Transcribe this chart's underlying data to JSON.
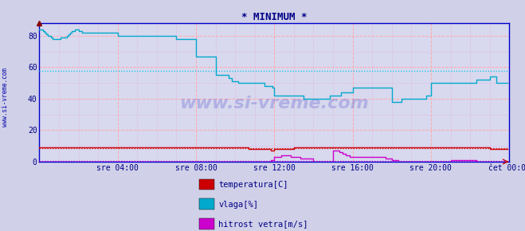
{
  "title": "* MINIMUM *",
  "title_color": "#000088",
  "bg_color": "#d0d0e8",
  "plot_bg_color": "#d8d8ee",
  "plot_border_color": "#0000cc",
  "grid_color_major": "#ffaaaa",
  "grid_color_minor": "#ddaadd",
  "xlim": [
    0,
    288
  ],
  "ylim": [
    0,
    88
  ],
  "yticks": [
    0,
    20,
    40,
    60,
    80
  ],
  "xtick_labels": [
    "sre 04:00",
    "sre 08:00",
    "sre 12:00",
    "sre 16:00",
    "sre 20:00",
    "čet 00:00"
  ],
  "xtick_positions": [
    48,
    96,
    144,
    192,
    240,
    288
  ],
  "watermark": "www.si-vreme.com",
  "watermark_color": "#0000bb",
  "watermark_alpha": 0.18,
  "avg_vlaga_line_color": "#00ccee",
  "avg_vlaga_line_value": 57.5,
  "avg_temp_line_color": "#dd0000",
  "avg_temp_line_value": 8.5,
  "avg_hitrost_line_color": "#cc00cc",
  "avg_hitrost_line_value": 0.5,
  "temp_color": "#cc0000",
  "vlaga_color": "#00aacc",
  "hitrost_color": "#cc00cc",
  "legend_labels": [
    "temperatura[C]",
    "vlaga[%]",
    "hitrost vetra[m/s]"
  ],
  "legend_colors": [
    "#cc0000",
    "#00aacc",
    "#cc00cc"
  ],
  "side_label": "www.si-vreme.com",
  "vlaga_data": [
    84,
    84,
    83,
    82,
    81,
    80,
    80,
    79,
    78,
    78,
    78,
    78,
    78,
    79,
    79,
    79,
    79,
    80,
    81,
    82,
    83,
    83,
    84,
    84,
    83,
    83,
    82,
    82,
    82,
    82,
    82,
    82,
    82,
    82,
    82,
    82,
    82,
    82,
    82,
    82,
    82,
    82,
    82,
    82,
    82,
    82,
    82,
    82,
    80,
    80,
    80,
    80,
    80,
    80,
    80,
    80,
    80,
    80,
    80,
    80,
    80,
    80,
    80,
    80,
    80,
    80,
    80,
    80,
    80,
    80,
    80,
    80,
    80,
    80,
    80,
    80,
    80,
    80,
    80,
    80,
    80,
    80,
    80,
    80,
    78,
    78,
    78,
    78,
    78,
    78,
    78,
    78,
    78,
    78,
    78,
    78,
    67,
    67,
    67,
    67,
    67,
    67,
    67,
    67,
    67,
    67,
    67,
    67,
    55,
    55,
    55,
    55,
    55,
    55,
    55,
    55,
    53,
    53,
    51,
    51,
    51,
    51,
    50,
    50,
    50,
    50,
    50,
    50,
    50,
    50,
    50,
    50,
    50,
    50,
    50,
    50,
    50,
    50,
    48,
    48,
    48,
    48,
    48,
    47,
    42,
    42,
    42,
    42,
    42,
    42,
    42,
    42,
    42,
    42,
    42,
    42,
    42,
    42,
    42,
    42,
    42,
    42,
    40,
    40,
    40,
    40,
    40,
    40,
    40,
    40,
    40,
    40,
    40,
    40,
    40,
    40,
    40,
    40,
    42,
    42,
    42,
    42,
    42,
    42,
    42,
    44,
    44,
    44,
    44,
    44,
    44,
    44,
    47,
    47,
    47,
    47,
    47,
    47,
    47,
    47,
    47,
    47,
    47,
    47,
    47,
    47,
    47,
    47,
    47,
    47,
    47,
    47,
    47,
    47,
    47,
    47,
    38,
    38,
    38,
    38,
    38,
    38,
    40,
    40,
    40,
    40,
    40,
    40,
    40,
    40,
    40,
    40,
    40,
    40,
    40,
    40,
    40,
    42,
    42,
    42,
    50,
    50,
    50,
    50,
    50,
    50,
    50,
    50,
    50,
    50,
    50,
    50,
    50,
    50,
    50,
    50,
    50,
    50,
    50,
    50,
    50,
    50,
    50,
    50,
    50,
    50,
    50,
    50,
    52,
    52,
    52,
    52,
    52,
    52,
    52,
    52,
    54,
    54,
    54,
    54,
    50,
    50,
    50,
    50,
    50,
    50,
    50,
    50
  ],
  "temp_data": [
    9,
    9,
    9,
    9,
    9,
    9,
    9,
    9,
    9,
    9,
    9,
    9,
    9,
    9,
    9,
    9,
    9,
    9,
    9,
    9,
    9,
    9,
    9,
    9,
    9,
    9,
    9,
    9,
    9,
    9,
    9,
    9,
    9,
    9,
    9,
    9,
    9,
    9,
    9,
    9,
    9,
    9,
    9,
    9,
    9,
    9,
    9,
    9,
    9,
    9,
    9,
    9,
    9,
    9,
    9,
    9,
    9,
    9,
    9,
    9,
    9,
    9,
    9,
    9,
    9,
    9,
    9,
    9,
    9,
    9,
    9,
    9,
    9,
    9,
    9,
    9,
    9,
    9,
    9,
    9,
    9,
    9,
    9,
    9,
    9,
    9,
    9,
    9,
    9,
    9,
    9,
    9,
    9,
    9,
    9,
    9,
    9,
    9,
    9,
    9,
    9,
    9,
    9,
    9,
    9,
    9,
    9,
    9,
    9,
    9,
    9,
    9,
    9,
    9,
    9,
    9,
    9,
    9,
    9,
    9,
    9,
    9,
    9,
    9,
    9,
    9,
    9,
    9,
    8,
    8,
    8,
    8,
    8,
    8,
    8,
    8,
    8,
    8,
    8,
    8,
    8,
    8,
    7,
    7,
    8,
    8,
    8,
    8,
    8,
    8,
    8,
    8,
    8,
    8,
    8,
    8,
    9,
    9,
    9,
    9,
    9,
    9,
    9,
    9,
    9,
    9,
    9,
    9,
    9,
    9,
    9,
    9,
    9,
    9,
    9,
    9,
    9,
    9,
    9,
    9,
    9,
    9,
    9,
    9,
    9,
    9,
    9,
    9,
    9,
    9,
    9,
    9,
    9,
    9,
    9,
    9,
    9,
    9,
    9,
    9,
    9,
    9,
    9,
    9,
    9,
    9,
    9,
    9,
    9,
    9,
    9,
    9,
    9,
    9,
    9,
    9,
    9,
    9,
    9,
    9,
    9,
    9,
    9,
    9,
    9,
    9,
    9,
    9,
    9,
    9,
    9,
    9,
    9,
    9,
    9,
    9,
    9,
    9,
    9,
    9,
    9,
    9,
    9,
    9,
    9,
    9,
    9,
    9,
    9,
    9,
    9,
    9,
    9,
    9,
    9,
    9,
    9,
    9,
    9,
    9,
    9,
    9,
    9,
    9,
    9,
    9,
    9,
    9,
    9,
    9,
    9,
    9,
    9,
    9,
    9,
    9,
    8,
    8,
    8,
    8,
    8,
    8,
    8,
    8,
    8,
    8,
    8,
    8
  ],
  "hitrost_data": [
    0,
    0,
    0,
    0,
    0,
    0,
    0,
    0,
    0,
    0,
    0,
    0,
    0,
    0,
    0,
    0,
    0,
    0,
    0,
    0,
    0,
    0,
    0,
    0,
    0,
    0,
    0,
    0,
    0,
    0,
    0,
    0,
    0,
    0,
    0,
    0,
    0,
    0,
    0,
    0,
    0,
    0,
    0,
    0,
    0,
    0,
    0,
    0,
    0,
    0,
    0,
    0,
    0,
    0,
    0,
    0,
    0,
    0,
    0,
    0,
    0,
    0,
    0,
    0,
    0,
    0,
    0,
    0,
    0,
    0,
    0,
    0,
    0,
    0,
    0,
    0,
    0,
    0,
    0,
    0,
    0,
    0,
    0,
    0,
    0,
    0,
    0,
    0,
    0,
    0,
    0,
    0,
    0,
    0,
    0,
    0,
    0,
    0,
    0,
    0,
    0,
    0,
    0,
    0,
    0,
    0,
    0,
    0,
    0,
    0,
    0,
    0,
    0,
    0,
    0,
    0,
    0,
    0,
    0,
    0,
    0,
    0,
    0,
    0,
    0,
    0,
    0,
    0,
    0,
    0,
    0,
    0,
    0,
    0,
    0,
    0,
    0,
    0,
    0,
    0,
    0,
    0,
    1,
    1,
    3,
    3,
    3,
    3,
    4,
    4,
    4,
    4,
    4,
    4,
    3,
    3,
    3,
    3,
    3,
    3,
    2,
    2,
    2,
    2,
    2,
    2,
    2,
    2,
    0,
    0,
    0,
    0,
    0,
    0,
    0,
    0,
    0,
    0,
    0,
    0,
    7,
    7,
    7,
    7,
    6,
    6,
    5,
    5,
    4,
    4,
    3,
    3,
    3,
    3,
    3,
    3,
    3,
    3,
    3,
    3,
    3,
    3,
    3,
    3,
    3,
    3,
    3,
    3,
    3,
    3,
    3,
    3,
    2,
    2,
    2,
    2,
    1,
    1,
    1,
    1,
    0,
    0,
    0,
    0,
    0,
    0,
    0,
    0,
    0,
    0,
    0,
    0,
    0,
    0,
    0,
    0,
    0,
    0,
    0,
    0,
    0,
    0,
    0,
    0,
    0,
    0,
    0,
    0,
    0,
    0,
    0,
    0,
    1,
    1,
    1,
    1,
    1,
    1,
    1,
    1,
    1,
    1,
    1,
    1,
    1,
    1,
    1,
    1,
    0,
    0,
    0,
    0,
    0,
    0,
    0,
    0,
    0,
    0,
    0,
    0,
    0,
    0,
    0,
    0,
    0,
    0,
    0,
    0
  ]
}
